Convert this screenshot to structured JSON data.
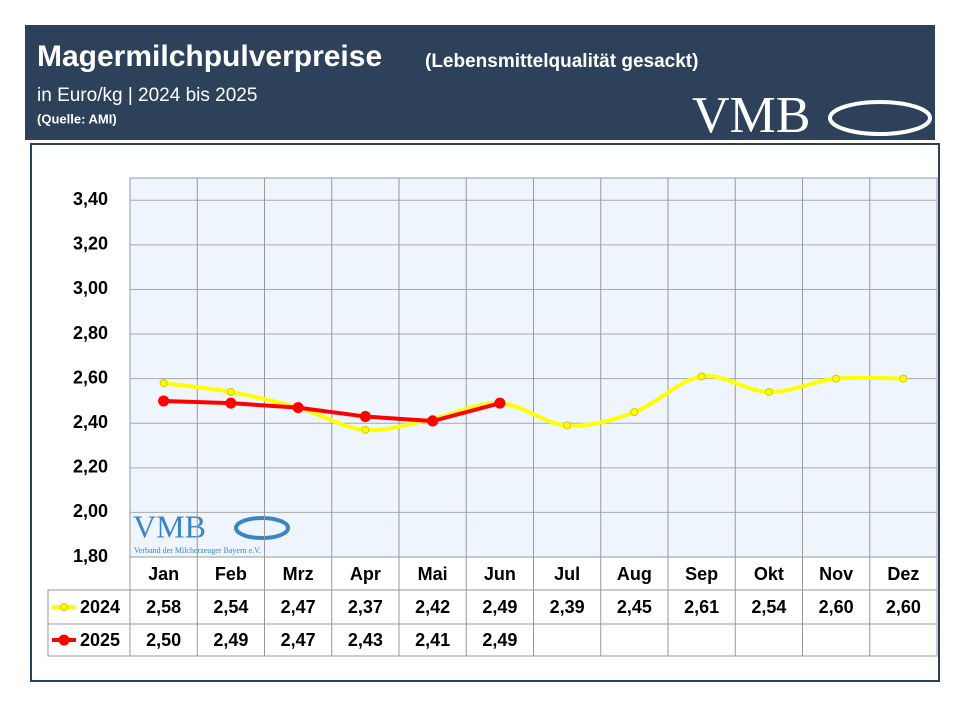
{
  "header": {
    "title": "Magermilchpulverpreise",
    "title_note": "(Lebensmittelqualität gesackt)",
    "subtitle": "in Euro/kg | 2024 bis 2025",
    "source": "(Quelle: AMI)",
    "logo": "VMB"
  },
  "watermark": {
    "logo": "VMB",
    "text": "Verband der Milcherzeuger Bayern e.V."
  },
  "chart_data": {
    "type": "line",
    "categories": [
      "Jan",
      "Feb",
      "Mrz",
      "Apr",
      "Mai",
      "Jun",
      "Jul",
      "Aug",
      "Sep",
      "Okt",
      "Nov",
      "Dez"
    ],
    "series": [
      {
        "name": "2024",
        "color": "#ffff00",
        "smooth": true,
        "values": [
          2.58,
          2.54,
          2.47,
          2.37,
          2.42,
          2.49,
          2.39,
          2.45,
          2.61,
          2.54,
          2.6,
          2.6
        ],
        "value_labels": [
          "2,58",
          "2,54",
          "2,47",
          "2,37",
          "2,42",
          "2,49",
          "2,39",
          "2,45",
          "2,61",
          "2,54",
          "2,60",
          "2,60"
        ]
      },
      {
        "name": "2025",
        "color": "#ff0000",
        "smooth": false,
        "values": [
          2.5,
          2.49,
          2.47,
          2.43,
          2.41,
          2.49,
          null,
          null,
          null,
          null,
          null,
          null
        ],
        "value_labels": [
          "2,50",
          "2,49",
          "2,47",
          "2,43",
          "2,41",
          "2,49",
          null,
          null,
          null,
          null,
          null,
          null
        ]
      }
    ],
    "ylim": [
      1.8,
      3.5
    ],
    "yticks": [
      {
        "value": 1.8,
        "label": "1,80"
      },
      {
        "value": 2.0,
        "label": "2,00"
      },
      {
        "value": 2.2,
        "label": "2,20"
      },
      {
        "value": 2.4,
        "label": "2,40"
      },
      {
        "value": 2.6,
        "label": "2,60"
      },
      {
        "value": 2.8,
        "label": "2,80"
      },
      {
        "value": 3.0,
        "label": "3,00"
      },
      {
        "value": 3.2,
        "label": "3,20"
      },
      {
        "value": 3.4,
        "label": "3,40"
      }
    ],
    "grid": true
  }
}
